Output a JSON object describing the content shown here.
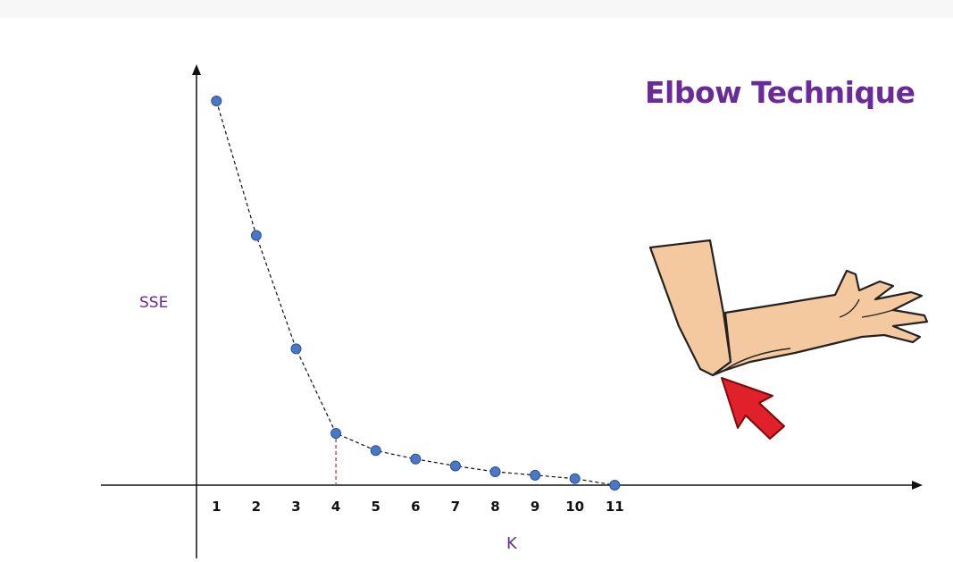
{
  "chart_data": {
    "type": "line",
    "title": "Elbow Technique",
    "xlabel": "K",
    "ylabel": "SSE",
    "x": [
      1,
      2,
      3,
      4,
      5,
      6,
      7,
      8,
      9,
      10,
      11
    ],
    "categories": [
      "1",
      "2",
      "3",
      "4",
      "5",
      "6",
      "7",
      "8",
      "9",
      "10",
      "11"
    ],
    "series": [
      {
        "values": [
          100,
          65,
          35.5,
          13.5,
          9,
          6.8,
          5,
          3.5,
          2.6,
          1.7,
          0
        ]
      }
    ],
    "ylim": [
      0,
      110
    ],
    "xlim": [
      -0.3,
      11.5
    ],
    "elbow_x": 4,
    "grid": false,
    "colors": {
      "point": "#4a78c8",
      "line": "#111111",
      "elbow_marker": "#cc3333",
      "title": "#6b2a9a",
      "arrow": "#e0202a",
      "skin": "#f5c9a0"
    },
    "illustration": "elbow-arm-with-red-arrow"
  }
}
